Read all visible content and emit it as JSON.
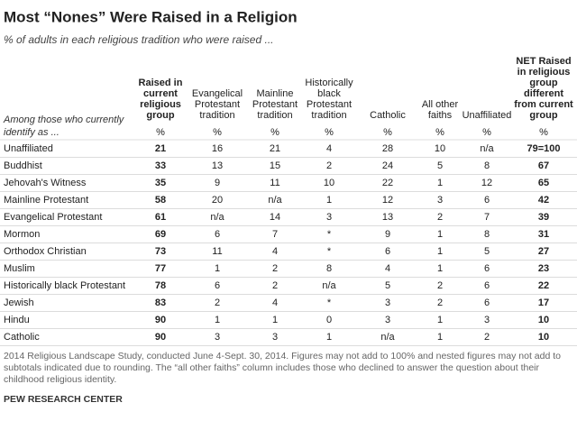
{
  "header": {
    "title": "Most “Nones” Were Raised in a Religion",
    "subtitle": "% of adults in each religious tradition who were raised ..."
  },
  "table": {
    "row_header": [
      "Among those who currently",
      "identify as ..."
    ],
    "columns": [
      [
        "Raised in",
        "current",
        "religious",
        "group"
      ],
      [
        "Evangelical",
        "Protestant",
        "tradition"
      ],
      [
        "Mainline",
        "Protestant",
        "tradition"
      ],
      [
        "Historically",
        "black",
        "Protestant",
        "tradition"
      ],
      [
        "Catholic"
      ],
      [
        "All other",
        "faiths"
      ],
      [
        "Unaffiliated"
      ],
      [
        "NET Raised",
        "in religious",
        "group",
        "different",
        "from current",
        "group"
      ]
    ],
    "units": [
      "%",
      "%",
      "%",
      "%",
      "%",
      "%",
      "%",
      "%"
    ],
    "rows": [
      [
        "Unaffiliated",
        21,
        16,
        21,
        4,
        28,
        10,
        "n/a",
        "79=100"
      ],
      [
        "Buddhist",
        33,
        13,
        15,
        2,
        24,
        5,
        8,
        67
      ],
      [
        "Jehovah's Witness",
        35,
        9,
        11,
        10,
        22,
        1,
        12,
        65
      ],
      [
        "Mainline Protestant",
        58,
        20,
        "n/a",
        1,
        12,
        3,
        6,
        42
      ],
      [
        "Evangelical Protestant",
        61,
        "n/a",
        14,
        3,
        13,
        2,
        7,
        39
      ],
      [
        "Mormon",
        69,
        6,
        7,
        "*",
        9,
        1,
        8,
        31
      ],
      [
        "Orthodox Christian",
        73,
        11,
        4,
        "*",
        6,
        1,
        5,
        27
      ],
      [
        "Muslim",
        77,
        1,
        2,
        8,
        4,
        1,
        6,
        23
      ],
      [
        "Historically black Protestant",
        78,
        6,
        2,
        "n/a",
        5,
        2,
        6,
        22
      ],
      [
        "Jewish",
        83,
        2,
        4,
        "*",
        3,
        2,
        6,
        17
      ],
      [
        "Hindu",
        90,
        1,
        1,
        0,
        3,
        1,
        3,
        10
      ],
      [
        "Catholic",
        90,
        3,
        3,
        1,
        "n/a",
        1,
        2,
        10
      ]
    ]
  },
  "footnote": "2014 Religious Landscape Study, conducted June 4-Sept. 30, 2014. Figures may not add to 100% and nested figures may not add to subtotals indicated due to rounding. The “all other faiths” column includes those who declined to answer the question about their childhood religious identity.",
  "source": "PEW RESEARCH CENTER"
}
